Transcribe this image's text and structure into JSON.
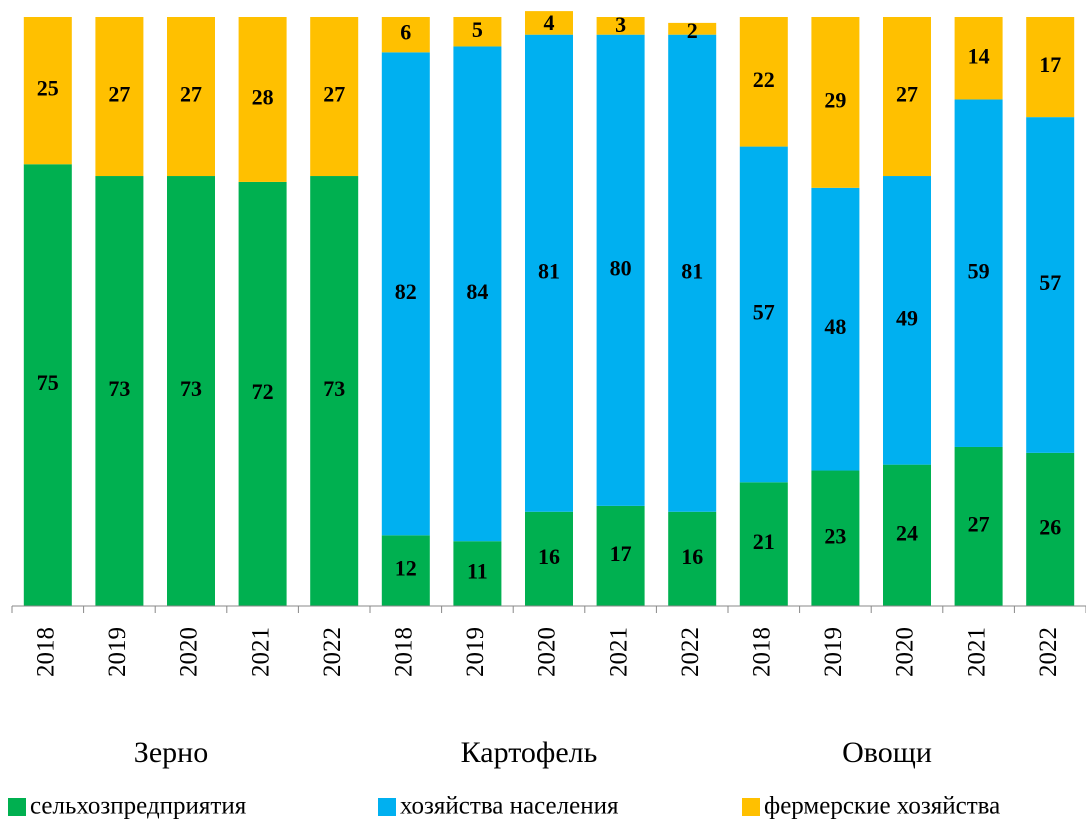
{
  "chart_data": {
    "type": "stacked_bar",
    "categories": [
      "2018",
      "2019",
      "2020",
      "2021",
      "2022",
      "2018",
      "2019",
      "2020",
      "2021",
      "2022",
      "2018",
      "2019",
      "2020",
      "2021",
      "2022"
    ],
    "groups": [
      "Зерно",
      "Картофель",
      "Овощи"
    ],
    "series": [
      {
        "name": "сельхозпредприятия",
        "color": "#00b050",
        "values": [
          75,
          73,
          73,
          72,
          73,
          12,
          11,
          16,
          17,
          16,
          21,
          23,
          24,
          27,
          26
        ]
      },
      {
        "name": "хозяйства населения",
        "color": "#00b0f0",
        "values": [
          null,
          null,
          null,
          null,
          null,
          82,
          84,
          81,
          80,
          81,
          57,
          48,
          49,
          59,
          57
        ]
      },
      {
        "name": "фермерские хозяйства",
        "color": "#ffc000",
        "values": [
          25,
          27,
          27,
          28,
          27,
          6,
          5,
          4,
          3,
          2,
          22,
          29,
          27,
          14,
          17
        ]
      }
    ],
    "ylim": [
      0,
      100
    ]
  }
}
